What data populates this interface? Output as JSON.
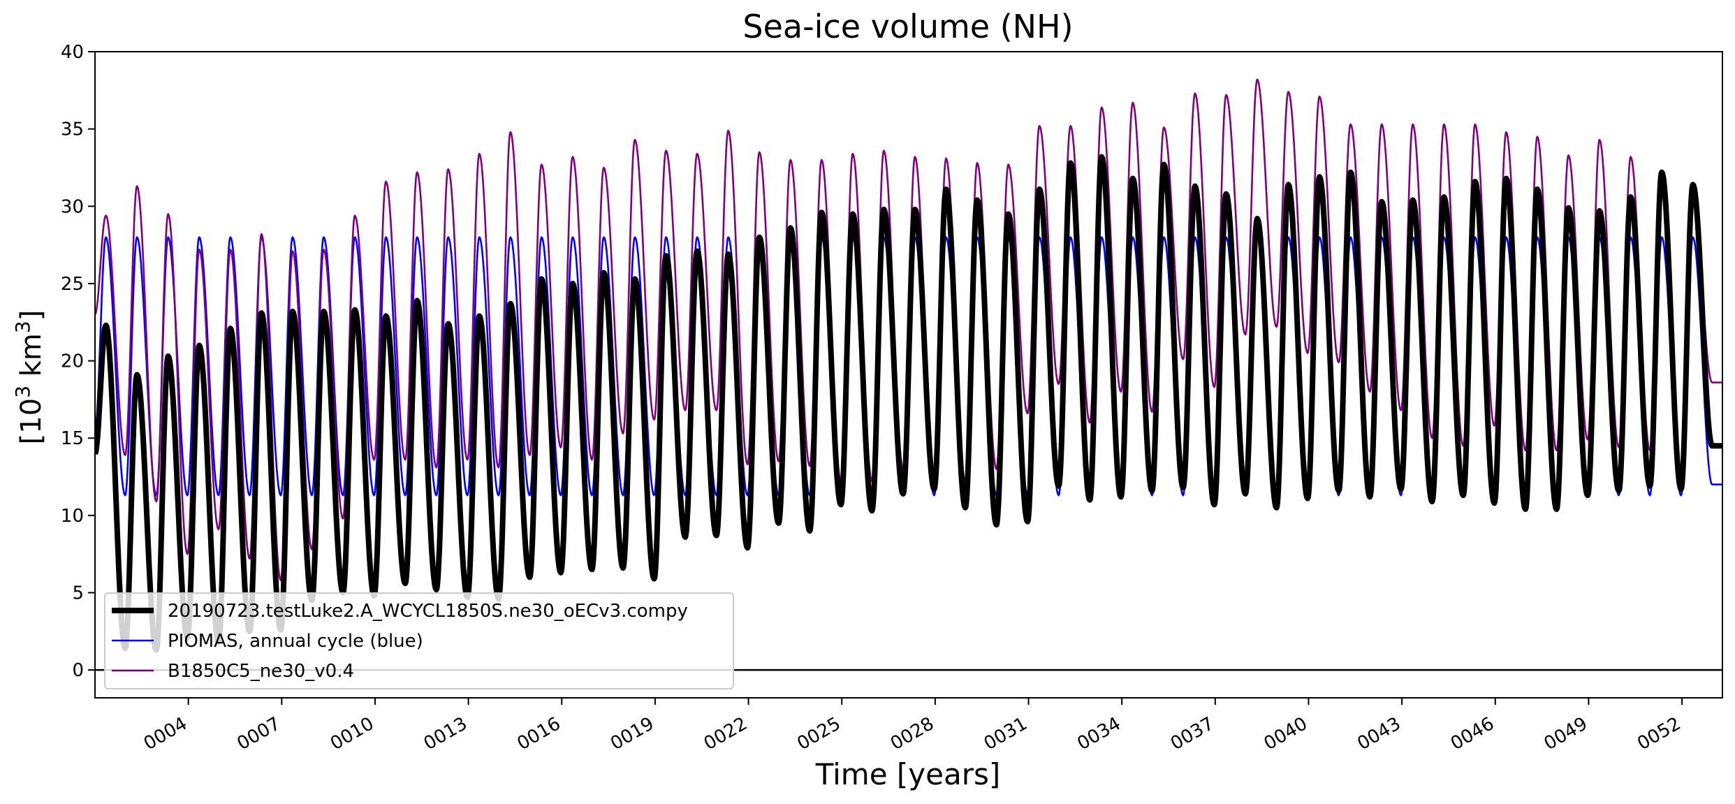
{
  "chart_data": {
    "type": "line",
    "title": "Sea-ice volume (NH)",
    "xlabel": "Time [years]",
    "ylabel_base": "[10",
    "ylabel_sup1": "3",
    "ylabel_mid": " km",
    "ylabel_sup2": "3",
    "ylabel_end": "]",
    "xlim": [
      1.0,
      53.3
    ],
    "ylim": [
      -1.8,
      40
    ],
    "x_ticks": [
      {
        "value": 4,
        "label": "0004"
      },
      {
        "value": 7,
        "label": "0007"
      },
      {
        "value": 10,
        "label": "0010"
      },
      {
        "value": 13,
        "label": "0013"
      },
      {
        "value": 16,
        "label": "0016"
      },
      {
        "value": 19,
        "label": "0019"
      },
      {
        "value": 22,
        "label": "0022"
      },
      {
        "value": 25,
        "label": "0025"
      },
      {
        "value": 28,
        "label": "0028"
      },
      {
        "value": 31,
        "label": "0031"
      },
      {
        "value": 34,
        "label": "0034"
      },
      {
        "value": 37,
        "label": "0037"
      },
      {
        "value": 40,
        "label": "0040"
      },
      {
        "value": 43,
        "label": "0043"
      },
      {
        "value": 46,
        "label": "0046"
      },
      {
        "value": 49,
        "label": "0049"
      },
      {
        "value": 52,
        "label": "0052"
      }
    ],
    "y_ticks": [
      0,
      5,
      10,
      15,
      20,
      25,
      30,
      35,
      40
    ],
    "hline": 0,
    "legend_position": "lower-left",
    "series": [
      {
        "name": "20190723.testLuke2.A_WCYCL1850S.ne30_oECv3.compy",
        "color": "#000000",
        "style": "thick",
        "x_start": 1.0,
        "start_value": 14.0,
        "maxima": [
          22.3,
          19.1,
          20.3,
          21.0,
          22.1,
          23.1,
          23.2,
          23.2,
          23.3,
          22.9,
          23.9,
          22.4,
          22.9,
          23.7,
          25.3,
          25.0,
          25.7,
          25.3,
          26.8,
          27.1,
          26.9,
          28.0,
          28.6,
          29.6,
          29.5,
          29.8,
          29.8,
          31.1,
          30.4,
          29.5,
          31.1,
          32.8,
          33.2,
          31.8,
          32.7,
          31.3,
          30.8,
          29.2,
          31.4,
          31.9,
          32.2,
          30.3,
          30.4,
          30.6,
          31.6,
          31.8,
          31.1,
          29.9,
          29.7,
          30.6,
          32.2,
          31.4
        ],
        "minima": [
          1.4,
          1.3,
          2.1,
          1.8,
          2.5,
          2.6,
          4.5,
          5.0,
          4.8,
          5.6,
          5.2,
          4.7,
          4.6,
          6.0,
          6.3,
          6.5,
          6.6,
          5.9,
          8.6,
          8.7,
          7.9,
          9.5,
          9.0,
          10.7,
          10.3,
          11.4,
          11.7,
          10.5,
          9.4,
          9.6,
          11.9,
          11.0,
          11.2,
          11.6,
          11.8,
          10.7,
          11.4,
          10.5,
          11.1,
          11.6,
          11.2,
          11.7,
          10.9,
          11.3,
          10.8,
          10.4,
          10.4,
          11.3,
          11.6,
          11.9,
          11.7
        ],
        "end_value": 14.5
      },
      {
        "name": "PIOMAS, annual cycle (blue)",
        "color": "#0000ff",
        "style": "thin",
        "x_start": 1.0,
        "start_value": 15.5,
        "maxima_value": 28.0,
        "minima_value": 11.3,
        "cycles": 52,
        "end_value": 12.0
      },
      {
        "name": "B1850C5_ne30_v0.4",
        "color": "#800080",
        "style": "thin",
        "x_start": 1.0,
        "start_value": 23.0,
        "maxima": [
          29.4,
          31.3,
          29.5,
          27.2,
          27.2,
          28.2,
          27.1,
          27.2,
          29.4,
          31.6,
          32.2,
          32.4,
          33.4,
          34.8,
          32.7,
          33.2,
          32.5,
          34.3,
          33.6,
          33.4,
          34.9,
          33.5,
          33.0,
          33.0,
          33.4,
          33.6,
          33.2,
          33.1,
          32.8,
          32.7,
          35.2,
          35.2,
          36.4,
          36.7,
          35.1,
          37.3,
          37.2,
          38.2,
          37.4,
          37.1,
          35.3,
          35.3,
          35.3,
          35.3,
          35.3,
          34.8,
          34.5,
          33.3,
          34.3,
          33.2,
          31.5,
          30.4
        ],
        "minima": [
          13.9,
          10.9,
          7.5,
          9.1,
          7.2,
          5.8,
          7.8,
          9.8,
          13.6,
          13.6,
          13.1,
          13.6,
          13.1,
          13.9,
          14.4,
          13.6,
          15.3,
          16.2,
          16.8,
          16.8,
          13.3,
          13.5,
          13.2,
          12.2,
          12.2,
          13.0,
          11.8,
          12.2,
          13.0,
          16.6,
          18.5,
          16.0,
          18.0,
          16.7,
          20.1,
          18.3,
          21.7,
          22.2,
          20.5,
          19.9,
          18.0,
          16.8,
          15.0,
          14.5,
          15.8,
          14.2,
          14.2,
          14.9,
          14.4,
          14.2,
          12.9
        ],
        "end_value": 18.6
      }
    ]
  }
}
